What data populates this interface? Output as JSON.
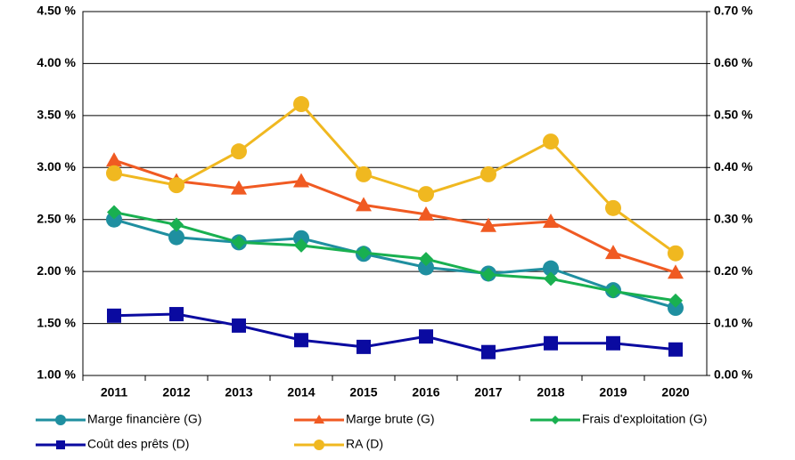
{
  "chart_data": {
    "type": "line",
    "categories": [
      "2011",
      "2012",
      "2013",
      "2014",
      "2015",
      "2016",
      "2017",
      "2018",
      "2019",
      "2020"
    ],
    "ylim": [
      1.0,
      4.5
    ],
    "yticks": [
      {
        "value": 1.0,
        "label": "1.00 %"
      },
      {
        "value": 1.5,
        "label": "1.50 %"
      },
      {
        "value": 2.0,
        "label": "2.00 %"
      },
      {
        "value": 2.5,
        "label": "2.50 %"
      },
      {
        "value": 3.0,
        "label": "3.00 %"
      },
      {
        "value": 3.5,
        "label": "3.50 %"
      },
      {
        "value": 4.0,
        "label": "4.00 %"
      },
      {
        "value": 4.5,
        "label": "4.50 %"
      }
    ],
    "y2lim": [
      0.0,
      0.7
    ],
    "y2ticks": [
      {
        "value": 0.0,
        "label": "0.00 %"
      },
      {
        "value": 0.1,
        "label": "0.10 %"
      },
      {
        "value": 0.2,
        "label": "0.20 %"
      },
      {
        "value": 0.3,
        "label": "0.30 %"
      },
      {
        "value": 0.4,
        "label": "0.40 %"
      },
      {
        "value": 0.5,
        "label": "0.50 %"
      },
      {
        "value": 0.6,
        "label": "0.60 %"
      },
      {
        "value": 0.7,
        "label": "0.70 %"
      }
    ],
    "grid": true,
    "series": [
      {
        "name": "Marge financière (G)",
        "color": "#1f8fa0",
        "marker": "circle",
        "values": [
          2.5,
          2.33,
          2.28,
          2.32,
          2.17,
          2.04,
          1.98,
          2.03,
          1.82,
          1.65
        ]
      },
      {
        "name": "Marge brute (G)",
        "color": "#f05a22",
        "marker": "triangle",
        "values": [
          3.07,
          2.87,
          2.8,
          2.87,
          2.64,
          2.55,
          2.44,
          2.48,
          2.18,
          1.99
        ]
      },
      {
        "name": "Frais d'exploitation (G)",
        "color": "#19b050",
        "marker": "diamond",
        "values": [
          2.57,
          2.45,
          2.28,
          2.25,
          2.18,
          2.12,
          1.97,
          1.93,
          1.81,
          1.72
        ]
      },
      {
        "name": "Coût des prêts (D)",
        "color": "#0a0aa0",
        "marker": "square",
        "axis": "y2",
        "values": [
          0.115,
          0.118,
          0.096,
          0.068,
          0.055,
          0.075,
          0.045,
          0.062,
          0.062,
          0.05
        ]
      },
      {
        "name": "RA (D)",
        "color": "#f0b820",
        "marker": "circle",
        "axis": "y2",
        "values": [
          0.389,
          0.366,
          0.431,
          0.522,
          0.387,
          0.349,
          0.387,
          0.45,
          0.322,
          0.235
        ]
      }
    ]
  }
}
